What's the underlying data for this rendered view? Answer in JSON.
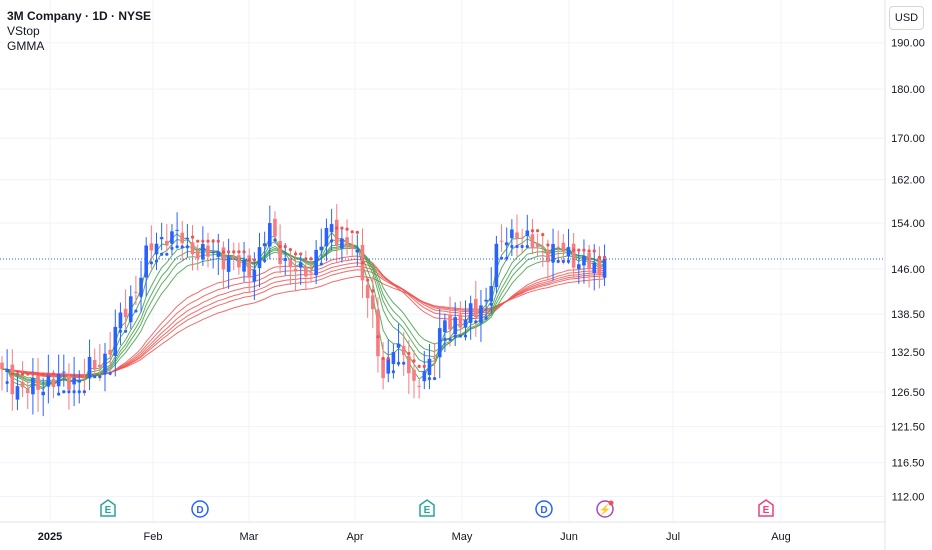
{
  "header": {
    "title": "3M Company · 1D · NYSE",
    "indicators": [
      "VStop",
      "GMMA"
    ],
    "currency": "USD"
  },
  "colors": {
    "up": "#2962ff",
    "down": "#f77c80",
    "gmma_short": "#43a047",
    "gmma_long": "#ef5350",
    "vstop_up": "#2962ff",
    "vstop_down": "#ef5350",
    "earnings": "#26a69a",
    "dividend": "#2962ff",
    "split": "#ab47bc",
    "future_earnings": "#ec407a"
  },
  "chart_data": {
    "type": "candlestick",
    "y_ticks": [
      "190.00",
      "180.00",
      "170.00",
      "162.00",
      "154.00",
      "146.00",
      "138.50",
      "132.50",
      "126.50",
      "121.50",
      "116.50",
      "112.00"
    ],
    "x_ticks": [
      "2025",
      "Feb",
      "Mar",
      "Apr",
      "May",
      "Jun",
      "Jul",
      "Aug"
    ],
    "y_scale": "log",
    "ylim": [
      110,
      196
    ],
    "last_price": 147.7,
    "grid": true,
    "events": [
      {
        "type": "earnings",
        "label": "E",
        "date": "Jan 21"
      },
      {
        "type": "dividend",
        "label": "D",
        "date": "Feb 14"
      },
      {
        "type": "earnings",
        "label": "E",
        "date": "Apr 22"
      },
      {
        "type": "dividend",
        "label": "D",
        "date": "May 23"
      },
      {
        "type": "split",
        "label": "⚡",
        "date": "Jun 10"
      },
      {
        "type": "earnings_upcoming",
        "label": "E",
        "date": "Jul 18"
      }
    ],
    "price_path": [
      [
        0,
        129
      ],
      [
        3,
        127.5
      ],
      [
        6,
        126.5
      ],
      [
        9,
        128.5
      ],
      [
        12,
        128
      ],
      [
        15,
        128.8
      ],
      [
        18,
        130
      ],
      [
        20,
        132
      ],
      [
        22,
        135.5
      ],
      [
        24,
        139
      ],
      [
        26,
        143
      ],
      [
        28,
        148
      ],
      [
        30,
        150.5
      ],
      [
        32,
        152
      ],
      [
        34,
        151.5
      ],
      [
        36,
        150.5
      ],
      [
        38,
        149
      ],
      [
        40,
        148.2
      ],
      [
        42,
        148.6
      ],
      [
        44,
        147.6
      ],
      [
        46,
        146.5
      ],
      [
        48,
        145.8
      ],
      [
        50,
        148.5
      ],
      [
        52,
        153
      ],
      [
        54,
        149
      ],
      [
        56,
        146
      ],
      [
        58,
        145.3
      ],
      [
        60,
        146.5
      ],
      [
        62,
        150.5
      ],
      [
        64,
        153
      ],
      [
        66,
        151
      ],
      [
        68,
        149.5
      ],
      [
        70,
        145
      ],
      [
        72,
        139
      ],
      [
        74,
        127
      ],
      [
        76,
        134
      ],
      [
        78,
        133
      ],
      [
        80,
        126
      ],
      [
        82,
        130
      ],
      [
        84,
        133
      ],
      [
        86,
        136.5
      ],
      [
        88,
        137.5
      ],
      [
        90,
        138
      ],
      [
        92,
        138.5
      ],
      [
        94,
        141
      ],
      [
        96,
        149
      ],
      [
        98,
        151
      ],
      [
        100,
        153
      ],
      [
        102,
        151
      ],
      [
        104,
        149
      ],
      [
        106,
        149.2
      ],
      [
        108,
        149.3
      ],
      [
        110,
        148.5
      ],
      [
        112,
        147.5
      ],
      [
        114,
        146.5
      ],
      [
        116,
        145
      ],
      [
        117,
        147.7
      ]
    ]
  }
}
